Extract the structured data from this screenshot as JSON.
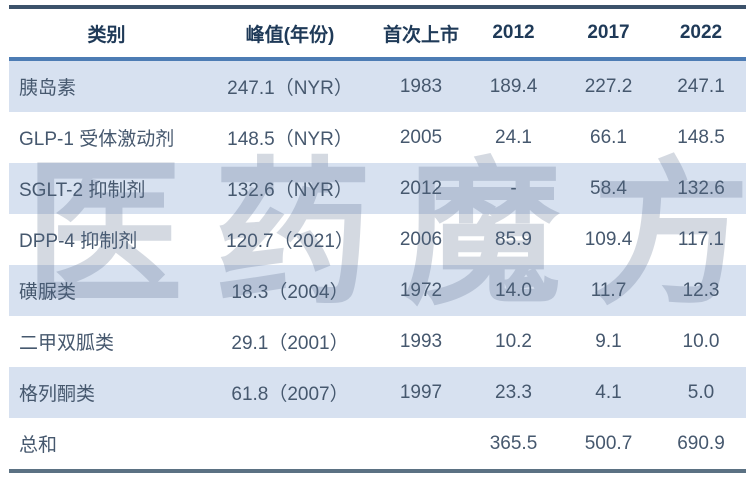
{
  "watermark": {
    "text": "医药魔方",
    "chars": [
      "医",
      "药",
      "魔",
      "方"
    ]
  },
  "table": {
    "columns": [
      {
        "key": "category",
        "label": "类别"
      },
      {
        "key": "peak_year",
        "label": "峰值(年份)"
      },
      {
        "key": "first_launch",
        "label": "首次上市"
      },
      {
        "key": "y2012",
        "label": "2012"
      },
      {
        "key": "y2017",
        "label": "2017"
      },
      {
        "key": "y2022",
        "label": "2022"
      }
    ],
    "rows": [
      [
        "胰岛素",
        "247.1（NYR）",
        "1983",
        "189.4",
        "227.2",
        "247.1"
      ],
      [
        "GLP-1 受体激动剂",
        "148.5（NYR）",
        "2005",
        "24.1",
        "66.1",
        "148.5"
      ],
      [
        "SGLT-2 抑制剂",
        "132.6（NYR）",
        "2012",
        "-",
        "58.4",
        "132.6"
      ],
      [
        "DPP-4 抑制剂",
        "120.7（2021）",
        "2006",
        "85.9",
        "109.4",
        "117.1"
      ],
      [
        "磺脲类",
        "18.3（2004）",
        "1972",
        "14.0",
        "11.7",
        "12.3"
      ],
      [
        "二甲双胍类",
        "29.1（2001）",
        "1993",
        "10.2",
        "9.1",
        "10.0"
      ],
      [
        "格列酮类",
        "61.8（2007）",
        "1997",
        "23.3",
        "4.1",
        "5.0"
      ],
      [
        "总和",
        "",
        "",
        "365.5",
        "500.7",
        "690.9"
      ]
    ]
  },
  "chart_data": {
    "type": "table",
    "title": "",
    "columns": [
      "类别",
      "峰值(年份)",
      "首次上市",
      "2012",
      "2017",
      "2022"
    ],
    "rows": [
      [
        "胰岛素",
        "247.1（NYR）",
        "1983",
        189.4,
        227.2,
        247.1
      ],
      [
        "GLP-1 受体激动剂",
        "148.5（NYR）",
        "2005",
        24.1,
        66.1,
        148.5
      ],
      [
        "SGLT-2 抑制剂",
        "132.6（NYR）",
        "2012",
        null,
        58.4,
        132.6
      ],
      [
        "DPP-4 抑制剂",
        "120.7（2021）",
        "2006",
        85.9,
        109.4,
        117.1
      ],
      [
        "磺脲类",
        "18.3（2004）",
        "1972",
        14.0,
        11.7,
        12.3
      ],
      [
        "二甲双胍类",
        "29.1（2001）",
        "1993",
        10.2,
        9.1,
        10.0
      ],
      [
        "格列酮类",
        "61.8（2007）",
        "1997",
        23.3,
        4.1,
        5.0
      ],
      [
        "总和",
        "",
        "",
        365.5,
        500.7,
        690.9
      ]
    ]
  },
  "colors": {
    "header_text": "#1f3a58",
    "body_text": "#46586e",
    "stripe_bg": "#d7e1f0",
    "top_border": "#3c526b",
    "header_underline": "#4d7cb4",
    "bottom_border": "#5b7183",
    "watermark_text": "#546886"
  }
}
